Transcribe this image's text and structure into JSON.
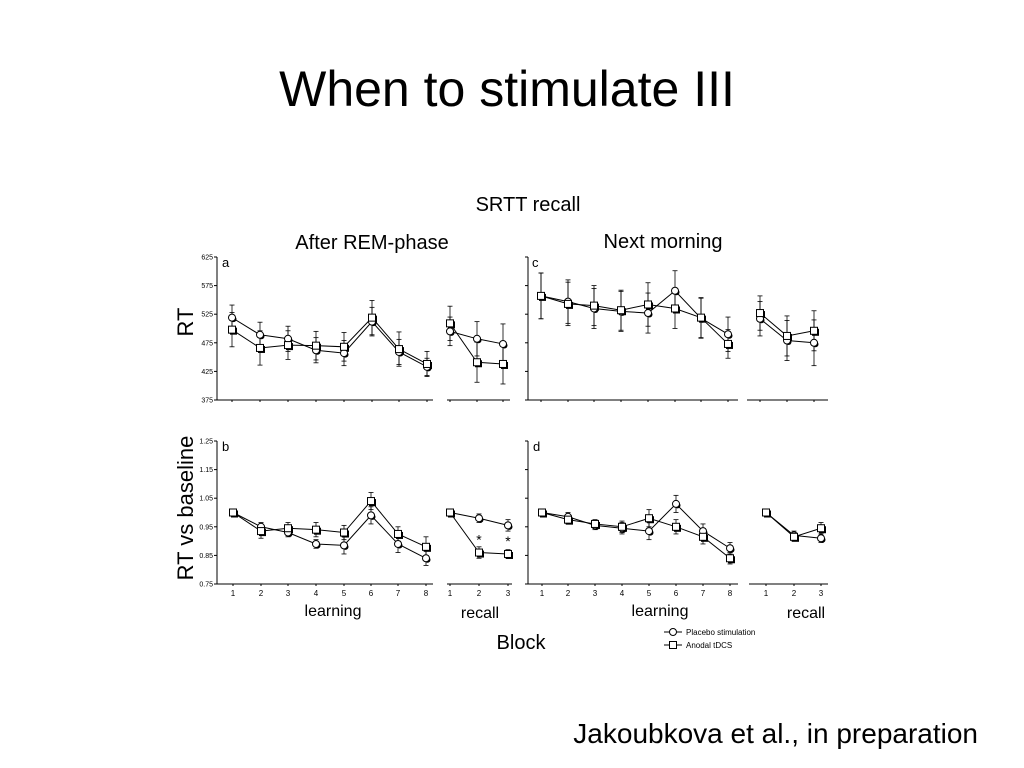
{
  "slide": {
    "title": "When to stimulate III",
    "citation": "Jakoubkova et al., in preparation"
  },
  "figure": {
    "title": "SRTT recall",
    "col_labels": [
      "After REM-phase",
      "Next morning"
    ],
    "y_labels": [
      "RT",
      "RT vs baseline"
    ],
    "x_label": "Block",
    "section_labels": {
      "learning": "learning",
      "recall": "recall"
    },
    "legend": [
      {
        "label": "Placebo stimulation",
        "marker": "circle"
      },
      {
        "label": "Anodal tDCS",
        "marker": "square"
      }
    ]
  },
  "colors": {
    "line": "#000000",
    "open_fill": "#ffffff",
    "filled": "#000000"
  },
  "chart_data": [
    {
      "type": "line",
      "panel": "a",
      "ylim": [
        375,
        625
      ],
      "yticks": [
        "625",
        "575",
        "525",
        "475",
        "425",
        "375"
      ],
      "learning": {
        "x": [
          "1",
          "2",
          "3",
          "4",
          "5",
          "6",
          "7",
          "8"
        ],
        "series": [
          {
            "name": "Placebo stimulation",
            "values": [
              519,
              489,
              482,
              462,
              457,
              512,
              459,
              433
            ],
            "err": [
              22,
              22,
              22,
              22,
              22,
              25,
              22,
              15
            ]
          },
          {
            "name": "Anodal tDCS",
            "values": [
              498,
              466,
              471,
              470,
              468,
              519,
              464,
              438
            ],
            "err": [
              30,
              30,
              25,
              25,
              25,
              30,
              30,
              22
            ]
          }
        ]
      },
      "recall": {
        "x": [
          "1",
          "2",
          "3"
        ],
        "series": [
          {
            "name": "Placebo stimulation",
            "values": [
              495,
              482,
              473
            ],
            "err": [
              25,
              30,
              35
            ]
          },
          {
            "name": "Anodal tDCS",
            "values": [
              509,
              441,
              438
            ],
            "err": [
              30,
              35,
              35
            ]
          }
        ]
      }
    },
    {
      "type": "line",
      "panel": "b",
      "ylim": [
        0.75,
        1.25
      ],
      "yticks": [
        "1.25",
        "1.15",
        "1.05",
        "0.95",
        "0.85",
        "0.75"
      ],
      "learning": {
        "x": [
          "1",
          "2",
          "3",
          "4",
          "5",
          "6",
          "7",
          "8"
        ],
        "series": [
          {
            "name": "Placebo stimulation",
            "values": [
              1.0,
              0.95,
              0.93,
              0.89,
              0.885,
              0.99,
              0.89,
              0.84
            ],
            "err": [
              0,
              0.015,
              0.015,
              0.015,
              0.03,
              0.03,
              0.03,
              0.025
            ]
          },
          {
            "name": "Anodal tDCS",
            "values": [
              1.0,
              0.935,
              0.945,
              0.94,
              0.93,
              1.04,
              0.925,
              0.88
            ],
            "err": [
              0,
              0.025,
              0.02,
              0.025,
              0.025,
              0.03,
              0.025,
              0.035
            ]
          }
        ]
      },
      "recall": {
        "x": [
          "1",
          "2",
          "3"
        ],
        "series": [
          {
            "name": "Placebo stimulation",
            "values": [
              1.0,
              0.98,
              0.955
            ],
            "err": [
              0,
              0.015,
              0.02
            ]
          },
          {
            "name": "Anodal tDCS",
            "values": [
              1.0,
              0.86,
              0.855
            ],
            "err": [
              0,
              0.02,
              0.015
            ]
          }
        ],
        "annotations": [
          {
            "x": "2",
            "text": "*"
          },
          {
            "x": "3",
            "text": "*"
          }
        ]
      }
    },
    {
      "type": "line",
      "panel": "c",
      "ylim": [
        375,
        625
      ],
      "yticks": [
        "625",
        "575",
        "525",
        "475",
        "425",
        "375"
      ],
      "learning": {
        "x": [
          "1",
          "2",
          "3",
          "4",
          "5",
          "6",
          "7",
          "8"
        ],
        "series": [
          {
            "name": "Placebo stimulation",
            "values": [
              557,
              547,
              535,
              530,
              527,
              566,
              518,
              490
            ],
            "err": [
              40,
              38,
              35,
              35,
              35,
              35,
              35,
              30
            ]
          },
          {
            "name": "Anodal tDCS",
            "values": [
              557,
              543,
              540,
              532,
              542,
              535,
              519,
              473
            ],
            "err": [
              40,
              38,
              35,
              35,
              38,
              35,
              35,
              25
            ]
          }
        ]
      },
      "recall": {
        "x": [
          "1",
          "2",
          "3"
        ],
        "series": [
          {
            "name": "Placebo stimulation",
            "values": [
              517,
              479,
              475
            ],
            "err": [
              30,
              35,
              40
            ]
          },
          {
            "name": "Anodal tDCS",
            "values": [
              527,
              487,
              496
            ],
            "err": [
              30,
              35,
              35
            ]
          }
        ]
      }
    },
    {
      "type": "line",
      "panel": "d",
      "ylim": [
        0.75,
        1.25
      ],
      "yticks": [
        "1.25",
        "1.15",
        "1.05",
        "0.95",
        "0.85",
        "0.75"
      ],
      "learning": {
        "x": [
          "1",
          "2",
          "3",
          "4",
          "5",
          "6",
          "7",
          "8"
        ],
        "series": [
          {
            "name": "Placebo stimulation",
            "values": [
              1.0,
              0.985,
              0.955,
              0.945,
              0.935,
              1.03,
              0.935,
              0.875
            ],
            "err": [
              0,
              0.015,
              0.015,
              0.02,
              0.03,
              0.03,
              0.025,
              0.02
            ]
          },
          {
            "name": "Anodal tDCS",
            "values": [
              1.0,
              0.975,
              0.96,
              0.95,
              0.98,
              0.95,
              0.915,
              0.84
            ],
            "err": [
              0,
              0.015,
              0.015,
              0.02,
              0.03,
              0.025,
              0.025,
              0.02
            ]
          }
        ]
      },
      "recall": {
        "x": [
          "1",
          "2",
          "3"
        ],
        "series": [
          {
            "name": "Placebo stimulation",
            "values": [
              1.0,
              0.92,
              0.91
            ],
            "err": [
              0,
              0.015,
              0.015
            ]
          },
          {
            "name": "Anodal tDCS",
            "values": [
              1.0,
              0.915,
              0.945
            ],
            "err": [
              0,
              0.015,
              0.02
            ]
          }
        ]
      }
    }
  ]
}
